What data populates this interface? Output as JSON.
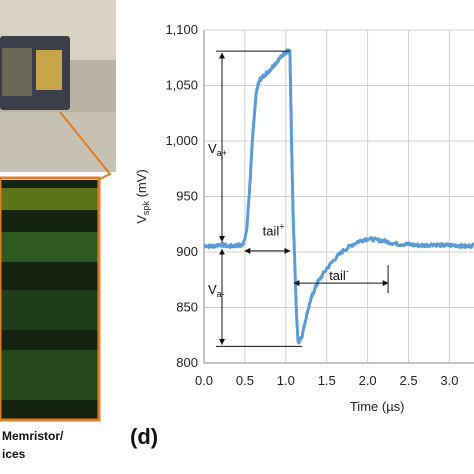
{
  "panel_label": "(d)",
  "left_panel": {
    "caption_lines": [
      "Memristor/",
      "ices"
    ]
  },
  "chart_data": {
    "type": "line",
    "xlabel": "Time (µs)",
    "ylabel_main": "V",
    "ylabel_sub": "spk",
    "ylabel_unit": " (mV)",
    "xlim": [
      0,
      3.3
    ],
    "ylim": [
      800,
      1100
    ],
    "xticks": [
      0.0,
      0.5,
      1.0,
      1.5,
      2.0,
      2.5,
      3.0
    ],
    "xtick_labels": [
      "0.0",
      "0.5",
      "1.0",
      "1.5",
      "2.0",
      "2.5",
      "3.0"
    ],
    "yticks": [
      800,
      850,
      900,
      950,
      1000,
      1050,
      1100
    ],
    "ytick_labels": [
      "800",
      "850",
      "900",
      "950",
      "1,000",
      "1,050",
      "1,100"
    ],
    "grid": true,
    "line_color": "#5b9bd5",
    "series": [
      {
        "x": [
          0.0,
          0.1,
          0.2,
          0.3,
          0.4,
          0.47,
          0.52,
          0.56,
          0.6,
          0.64,
          0.68,
          0.72,
          0.78,
          0.85,
          0.92,
          0.98,
          1.02,
          1.05,
          1.07,
          1.09,
          1.11,
          1.13,
          1.15,
          1.2,
          1.25,
          1.3,
          1.35,
          1.4,
          1.5,
          1.6,
          1.7,
          1.8,
          1.9,
          2.0,
          2.1,
          2.2,
          2.3,
          2.4,
          2.5,
          2.6,
          2.7,
          2.8,
          2.9,
          3.0,
          3.1,
          3.2,
          3.3
        ],
        "y": [
          906,
          905,
          907,
          905,
          906,
          906,
          918,
          960,
          1010,
          1045,
          1055,
          1058,
          1062,
          1068,
          1074,
          1079,
          1081,
          1080,
          1000,
          930,
          890,
          845,
          818,
          825,
          842,
          856,
          866,
          874,
          885,
          894,
          901,
          906,
          910,
          912,
          911,
          910,
          908,
          907,
          907,
          906,
          906,
          907,
          906,
          906,
          906,
          905,
          906
        ]
      }
    ],
    "annotations": {
      "va_plus_main": "V",
      "va_plus_sub": "a+",
      "va_minus_main": "V",
      "va_minus_sub": "a-",
      "tail_plus_main": "tail",
      "tail_plus_sup": "+",
      "tail_minus_main": "tail",
      "tail_minus_sup": "-",
      "baseline_mv": 906,
      "peak_mv": 1081,
      "trough_mv": 815,
      "tail_plus_x": [
        0.5,
        1.05
      ],
      "tail_minus_x": [
        1.1,
        2.25
      ]
    }
  }
}
